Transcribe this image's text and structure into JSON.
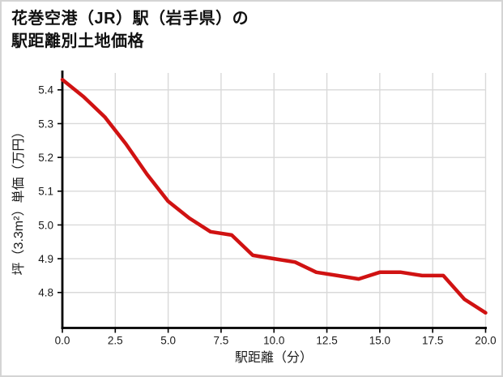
{
  "title": {
    "line1": "花巻空港（JR）駅（岩手県）の",
    "line2": "駅距離別土地価格"
  },
  "chart_data": {
    "type": "line",
    "title": "花巻空港（JR）駅（岩手県）の駅距離別土地価格",
    "xlabel": "駅距離（分）",
    "ylabel": "坪（3.3m²）単価（万円）",
    "x": [
      0,
      1,
      2,
      3,
      4,
      5,
      6,
      7,
      8,
      9,
      10,
      11,
      12,
      13,
      14,
      15,
      16,
      17,
      18,
      19,
      20
    ],
    "values": [
      5.43,
      5.38,
      5.32,
      5.24,
      5.15,
      5.07,
      5.02,
      4.98,
      4.97,
      4.91,
      4.9,
      4.89,
      4.86,
      4.85,
      4.84,
      4.86,
      4.86,
      4.85,
      4.85,
      4.78,
      4.74
    ],
    "x_tick_labels": [
      "0.0",
      "2.5",
      "5.0",
      "7.5",
      "10.0",
      "12.5",
      "15.0",
      "17.5",
      "20.0"
    ],
    "x_ticks": [
      0,
      2.5,
      5,
      7.5,
      10,
      12.5,
      15,
      17.5,
      20
    ],
    "y_tick_labels": [
      "5.4",
      "5.3",
      "5.2",
      "5.1",
      "5.0",
      "4.9",
      "4.8"
    ],
    "y_ticks": [
      5.4,
      5.3,
      5.2,
      5.1,
      5.0,
      4.9,
      4.8
    ],
    "xlim": [
      0,
      20
    ],
    "ylim": [
      4.695,
      5.45
    ],
    "grid": true,
    "legend": "none",
    "line_color": "#d01212",
    "axis_color": "#000000",
    "grid_color": "#d9d9d9"
  }
}
